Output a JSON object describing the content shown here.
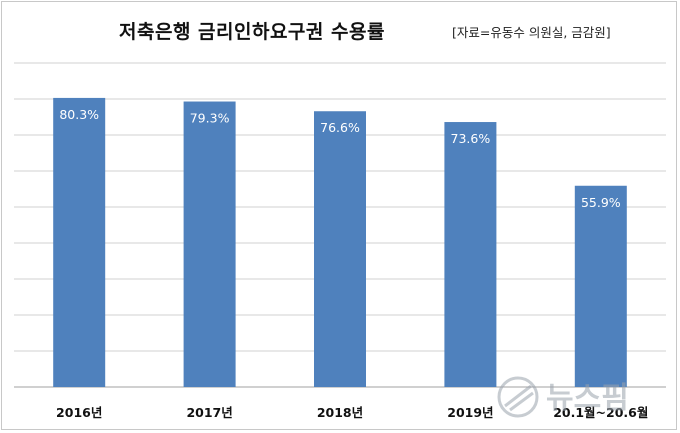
{
  "header": {
    "title": "저축은행 금리인하요구권 수용률",
    "source": "[자료=유동수 의원실, 금감원]"
  },
  "watermark": {
    "text": "뉴스핌"
  },
  "colors": {
    "bar": "#4f81bd",
    "grid": "#d0d0d0",
    "label": "#ffffff"
  },
  "chart_data": {
    "type": "bar",
    "title": "저축은행 금리인하요구권 수용률",
    "categories": [
      "2016년",
      "2017년",
      "2018년",
      "2019년",
      "20.1월~20.6월"
    ],
    "values": [
      80.3,
      79.3,
      76.6,
      73.6,
      55.9
    ],
    "data_labels": [
      "80.3%",
      "79.3%",
      "76.6%",
      "73.6%",
      "55.9%"
    ],
    "ylim": [
      0,
      90
    ],
    "y_step": 10,
    "grid": true,
    "legend": "none"
  }
}
